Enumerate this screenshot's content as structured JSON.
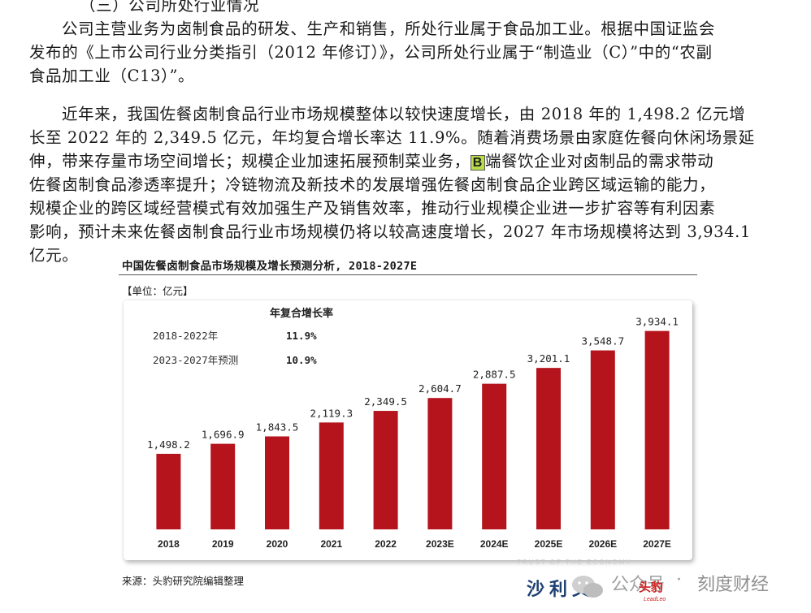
{
  "document": {
    "section_heading": "（三）公司所处行业情况",
    "para1_lines": [
      "公司主营业务为卤制食品的研发、生产和销售，所处行业属于食品加工业。根据中国证监会",
      "发布的《上市公司行业分类指引（2012 年修订）》，公司所处行业属于“制造业（C）”中的“农副",
      "食品加工业（C13）”。"
    ],
    "para2_lines": [
      "近年来，我国佐餐卤制食品行业市场规模整体以较快速度增长，由 2018 年的 1,498.2 亿元增",
      "长至 2022 年的 2,349.5 亿元，年均复合增长率达 11.9%。随着消费场景由家庭佐餐向休闲场景延",
      "伸，带来存量市场空间增长；规模企业加速拓展预制菜业务，",
      "端餐饮企业对卤制品的需求带动",
      "佐餐卤制食品渗透率提升；冷链物流及新技术的发展增强佐餐卤制食品企业跨区域运输的能力，",
      "规模企业的跨区域经营模式有效加强生产及销售效率，推动行业规模企业进一步扩容等有利因素",
      "影响，预计未来佐餐卤制食品行业市场规模仍将以较高速度增长，2027 年市场规模将达到 3,934.1",
      "亿元。"
    ],
    "highlight_letter": "B"
  },
  "figure": {
    "title": "中国佐餐卤制食品市场规模及增长预测分析, 2018-2027E",
    "unit": "【单位：亿元】",
    "source": "来源：头豹研究院编辑整理"
  },
  "chart_data": {
    "type": "bar",
    "categories": [
      "2018",
      "2019",
      "2020",
      "2021",
      "2022",
      "2023E",
      "2024E",
      "2025E",
      "2026E",
      "2027E"
    ],
    "values": [
      1498.2,
      1696.9,
      1843.5,
      2119.3,
      2349.5,
      2604.7,
      2887.5,
      3201.1,
      3548.7,
      3934.1
    ],
    "value_labels": [
      "1,498.2",
      "1,696.9",
      "1,843.5",
      "2,119.3",
      "2,349.5",
      "2,604.7",
      "2,887.5",
      "3,201.1",
      "3,548.7",
      "3,934.1"
    ],
    "bar_color": "#b5141c",
    "ylim": [
      0,
      4250
    ],
    "grid": false,
    "cagr_table": {
      "header": "年复合增长率",
      "rows": [
        {
          "label": "2018-2022年",
          "value": "11.9%"
        },
        {
          "label": "2023-2027年预测",
          "value": "10.9%"
        }
      ]
    }
  },
  "watermark": {
    "band_text": "TRUST OF THE ECONOMY",
    "logo_text": "沙利文",
    "wechat_text": "公众号",
    "separator": "·",
    "account_name": "刻度财经",
    "badge_text": "头豹",
    "badge_sub": "LeadLeo",
    "accent_color": "#d02020"
  }
}
